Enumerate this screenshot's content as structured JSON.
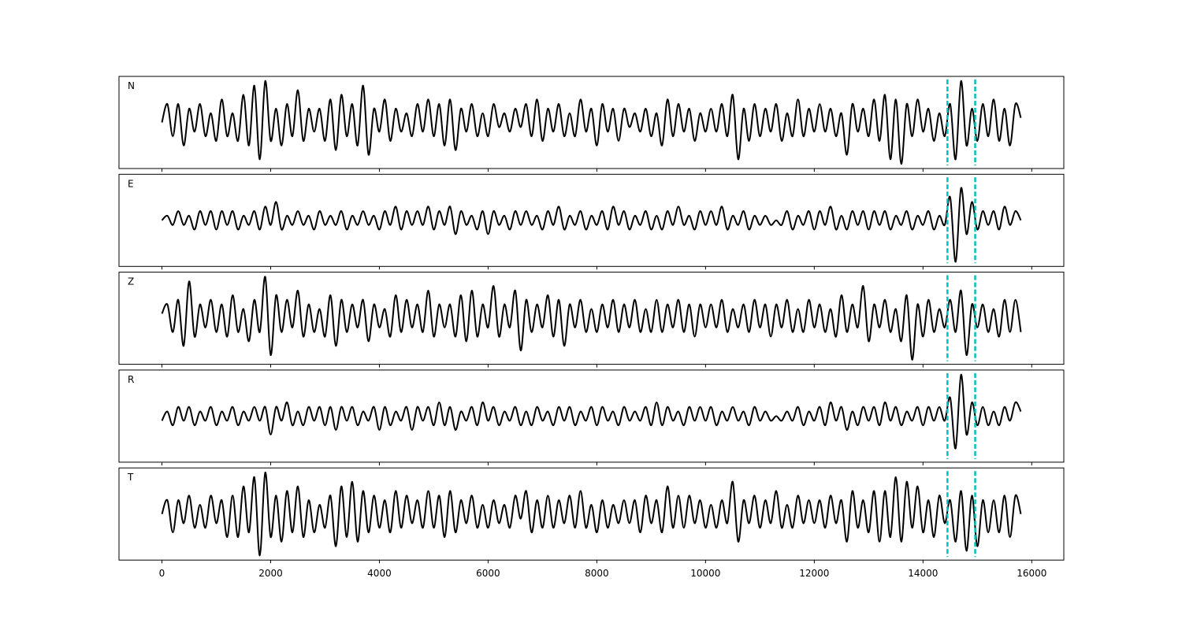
{
  "chart_data": {
    "type": "line",
    "color": "#000000",
    "x": [
      0,
      100,
      200,
      300,
      400,
      500,
      600,
      700,
      800,
      900,
      1000,
      1100,
      1200,
      1300,
      1400,
      1500,
      1600,
      1700,
      1800,
      1900,
      2000,
      2100,
      2200,
      2300,
      2400,
      2500,
      2600,
      2700,
      2800,
      2900,
      3000,
      3100,
      3200,
      3300,
      3400,
      3500,
      3600,
      3700,
      3800,
      3900,
      4000,
      4100,
      4200,
      4300,
      4400,
      4500,
      4600,
      4700,
      4800,
      4900,
      5000,
      5100,
      5200,
      5300,
      5400,
      5500,
      5600,
      5700,
      5800,
      5900,
      6000,
      6100,
      6200,
      6300,
      6400,
      6500,
      6600,
      6700,
      6800,
      6900,
      7000,
      7100,
      7200,
      7300,
      7400,
      7500,
      7600,
      7700,
      7800,
      7900,
      8000,
      8100,
      8200,
      8300,
      8400,
      8500,
      8600,
      8700,
      8800,
      8900,
      9000,
      9100,
      9200,
      9300,
      9400,
      9500,
      9600,
      9700,
      9800,
      9900,
      10000,
      10100,
      10200,
      10300,
      10400,
      10500,
      10600,
      10700,
      10800,
      10900,
      11000,
      11100,
      11200,
      11300,
      11400,
      11500,
      11600,
      11700,
      11800,
      11900,
      12000,
      12100,
      12200,
      12300,
      12400,
      12500,
      12600,
      12700,
      12800,
      12900,
      13000,
      13100,
      13200,
      13300,
      13400,
      13500,
      13600,
      13700,
      13800,
      13900,
      14000,
      14100,
      14200,
      14300,
      14400,
      14500,
      14600,
      14700,
      14800,
      14900,
      15000,
      15100,
      15200,
      15300,
      15400,
      15500,
      15600,
      15700,
      15800
    ],
    "series": [
      {
        "name": "N",
        "values": [
          0.0,
          0.4,
          -0.3,
          0.4,
          -0.5,
          0.3,
          -0.2,
          0.4,
          -0.3,
          0.2,
          -0.4,
          0.5,
          -0.3,
          0.2,
          -0.4,
          0.6,
          -0.5,
          0.8,
          -0.8,
          0.9,
          -0.4,
          0.3,
          -0.5,
          0.4,
          -0.3,
          0.7,
          -0.4,
          0.3,
          -0.2,
          0.3,
          -0.4,
          0.5,
          -0.6,
          0.6,
          -0.3,
          0.4,
          -0.5,
          0.8,
          -0.7,
          0.3,
          -0.2,
          0.5,
          -0.4,
          0.3,
          -0.2,
          0.2,
          -0.3,
          0.4,
          -0.2,
          0.5,
          -0.3,
          0.4,
          -0.5,
          0.5,
          -0.6,
          0.3,
          -0.2,
          0.4,
          -0.3,
          0.2,
          -0.3,
          0.4,
          -0.1,
          0.2,
          -0.2,
          0.3,
          -0.1,
          0.4,
          -0.3,
          0.5,
          -0.4,
          0.3,
          -0.2,
          0.4,
          -0.3,
          0.2,
          -0.3,
          0.5,
          -0.2,
          0.3,
          -0.5,
          0.4,
          -0.2,
          0.3,
          -0.4,
          0.3,
          -0.1,
          0.2,
          -0.2,
          0.3,
          -0.3,
          0.2,
          -0.5,
          0.5,
          -0.3,
          0.4,
          -0.2,
          0.3,
          -0.4,
          0.2,
          -0.2,
          0.3,
          -0.2,
          0.4,
          -0.3,
          0.6,
          -0.8,
          0.3,
          -0.4,
          0.4,
          -0.3,
          0.3,
          -0.2,
          0.4,
          -0.4,
          0.2,
          -0.3,
          0.5,
          -0.3,
          0.3,
          -0.2,
          0.4,
          -0.2,
          0.3,
          -0.3,
          0.2,
          -0.7,
          0.4,
          -0.2,
          0.3,
          -0.3,
          0.5,
          -0.4,
          0.6,
          -0.8,
          0.5,
          -0.9,
          0.4,
          -0.3,
          0.5,
          -0.2,
          0.3,
          -0.4,
          0.2,
          -0.3,
          0.4,
          -0.8,
          0.9,
          -0.5,
          0.3,
          -0.4,
          0.4,
          -0.3,
          0.5,
          -0.4,
          0.3,
          -0.5,
          0.4,
          0.1
        ]
      },
      {
        "name": "E",
        "values": [
          0.0,
          0.1,
          -0.1,
          0.2,
          -0.1,
          0.1,
          -0.2,
          0.2,
          -0.1,
          0.2,
          -0.2,
          0.2,
          -0.1,
          0.2,
          -0.2,
          0.1,
          -0.1,
          0.2,
          -0.2,
          0.3,
          -0.1,
          0.4,
          -0.2,
          0.1,
          -0.1,
          0.2,
          -0.1,
          0.1,
          -0.2,
          0.2,
          -0.1,
          0.1,
          -0.1,
          0.2,
          -0.2,
          0.1,
          -0.1,
          0.2,
          -0.1,
          0.1,
          -0.2,
          0.2,
          -0.1,
          0.3,
          -0.2,
          0.2,
          -0.1,
          0.2,
          -0.1,
          0.3,
          -0.2,
          0.2,
          -0.1,
          0.3,
          -0.3,
          0.2,
          -0.1,
          0.1,
          -0.2,
          0.2,
          -0.3,
          0.2,
          -0.1,
          0.1,
          -0.2,
          0.2,
          -0.1,
          0.2,
          -0.1,
          0.1,
          -0.2,
          0.2,
          -0.1,
          0.3,
          -0.2,
          0.1,
          -0.1,
          0.2,
          -0.2,
          0.1,
          -0.1,
          0.2,
          -0.2,
          0.3,
          -0.1,
          0.2,
          -0.2,
          0.1,
          -0.1,
          0.2,
          -0.2,
          0.1,
          -0.2,
          0.2,
          -0.1,
          0.3,
          -0.1,
          0.1,
          -0.2,
          0.2,
          -0.1,
          0.2,
          -0.1,
          0.3,
          -0.2,
          0.1,
          -0.1,
          0.2,
          -0.2,
          0.1,
          -0.1,
          0.1,
          -0.1,
          0.0,
          -0.1,
          0.2,
          -0.2,
          0.1,
          -0.1,
          0.2,
          -0.2,
          0.2,
          -0.1,
          0.3,
          -0.2,
          0.1,
          -0.2,
          0.2,
          -0.1,
          0.2,
          -0.2,
          0.2,
          -0.1,
          0.2,
          -0.2,
          0.1,
          -0.1,
          0.2,
          -0.2,
          0.1,
          -0.1,
          0.2,
          -0.2,
          0.1,
          -0.1,
          0.5,
          -0.9,
          0.7,
          -0.3,
          0.4,
          -0.2,
          0.2,
          -0.1,
          0.2,
          -0.2,
          0.3,
          -0.1,
          0.2,
          0.0
        ]
      },
      {
        "name": "Z",
        "values": [
          0.1,
          0.3,
          -0.3,
          0.4,
          -0.6,
          0.8,
          -0.4,
          0.3,
          -0.2,
          0.4,
          -0.3,
          0.3,
          -0.4,
          0.5,
          -0.3,
          0.2,
          -0.5,
          0.4,
          -0.3,
          0.9,
          -0.8,
          0.5,
          -0.3,
          0.4,
          -0.2,
          0.6,
          -0.4,
          0.3,
          -0.3,
          0.2,
          -0.4,
          0.5,
          -0.6,
          0.4,
          -0.3,
          0.3,
          -0.2,
          0.4,
          -0.5,
          0.3,
          -0.2,
          0.2,
          -0.4,
          0.5,
          -0.3,
          0.4,
          -0.2,
          0.3,
          -0.3,
          0.6,
          -0.4,
          0.3,
          -0.2,
          0.3,
          -0.4,
          0.5,
          -0.5,
          0.6,
          -0.4,
          0.3,
          -0.2,
          0.7,
          -0.4,
          0.3,
          -0.2,
          0.6,
          -0.7,
          0.4,
          -0.3,
          0.3,
          -0.2,
          0.5,
          -0.4,
          0.4,
          -0.6,
          0.3,
          -0.2,
          0.4,
          -0.3,
          0.2,
          -0.3,
          0.3,
          -0.2,
          0.4,
          -0.3,
          0.3,
          -0.2,
          0.4,
          -0.3,
          0.2,
          -0.3,
          0.4,
          -0.3,
          0.3,
          -0.2,
          0.4,
          -0.3,
          0.3,
          -0.4,
          0.3,
          -0.2,
          0.3,
          -0.2,
          0.4,
          -0.3,
          0.2,
          -0.2,
          0.3,
          -0.3,
          0.4,
          -0.2,
          0.3,
          -0.4,
          0.3,
          -0.2,
          0.4,
          -0.3,
          0.2,
          -0.3,
          0.4,
          -0.2,
          0.3,
          -0.3,
          0.2,
          -0.4,
          0.5,
          -0.3,
          0.3,
          -0.2,
          0.7,
          -0.5,
          0.3,
          -0.2,
          0.4,
          -0.3,
          0.2,
          -0.5,
          0.5,
          -0.9,
          0.3,
          -0.4,
          0.4,
          -0.3,
          0.2,
          -0.2,
          0.4,
          -0.3,
          0.6,
          -0.8,
          0.3,
          -0.2,
          0.3,
          -0.3,
          0.2,
          -0.4,
          0.4,
          -0.3,
          0.4,
          -0.3
        ]
      },
      {
        "name": "R",
        "values": [
          -0.1,
          0.1,
          -0.2,
          0.2,
          -0.1,
          0.2,
          -0.2,
          0.1,
          -0.1,
          0.2,
          -0.2,
          0.1,
          -0.1,
          0.2,
          -0.2,
          0.1,
          -0.1,
          0.2,
          -0.1,
          0.2,
          -0.4,
          0.2,
          -0.1,
          0.3,
          -0.2,
          0.1,
          -0.2,
          0.2,
          -0.1,
          0.2,
          -0.2,
          0.2,
          -0.3,
          0.2,
          -0.1,
          0.2,
          -0.2,
          0.1,
          -0.1,
          0.2,
          -0.3,
          0.2,
          -0.2,
          0.1,
          -0.1,
          0.2,
          -0.3,
          0.2,
          -0.1,
          0.2,
          -0.2,
          0.3,
          -0.2,
          0.2,
          -0.3,
          0.1,
          -0.1,
          0.2,
          -0.2,
          0.3,
          -0.1,
          0.2,
          -0.2,
          0.1,
          -0.1,
          0.2,
          -0.2,
          0.1,
          -0.2,
          0.2,
          -0.1,
          0.1,
          -0.2,
          0.2,
          -0.1,
          0.2,
          -0.2,
          0.1,
          -0.1,
          0.2,
          -0.2,
          0.2,
          -0.1,
          0.1,
          -0.2,
          0.2,
          -0.1,
          0.1,
          -0.1,
          0.2,
          -0.2,
          0.3,
          -0.2,
          0.2,
          -0.1,
          0.1,
          -0.2,
          0.2,
          -0.1,
          0.2,
          -0.1,
          0.2,
          -0.2,
          0.1,
          -0.1,
          0.2,
          -0.1,
          0.1,
          -0.2,
          0.2,
          -0.1,
          0.1,
          -0.1,
          0.0,
          -0.1,
          0.1,
          -0.1,
          0.2,
          -0.2,
          0.1,
          -0.1,
          0.2,
          -0.2,
          0.3,
          -0.1,
          0.2,
          -0.3,
          0.1,
          -0.2,
          0.2,
          -0.1,
          0.2,
          -0.2,
          0.3,
          -0.1,
          0.2,
          -0.2,
          0.1,
          -0.1,
          0.2,
          -0.2,
          0.2,
          -0.1,
          0.2,
          -0.1,
          0.4,
          -0.7,
          0.9,
          -0.4,
          0.3,
          -0.2,
          0.2,
          -0.2,
          0.1,
          -0.2,
          0.2,
          -0.1,
          0.3,
          0.1
        ]
      },
      {
        "name": "T",
        "values": [
          0.0,
          0.3,
          -0.4,
          0.3,
          -0.2,
          0.4,
          -0.3,
          0.2,
          -0.3,
          0.4,
          -0.2,
          0.3,
          -0.5,
          0.4,
          -0.5,
          0.6,
          -0.4,
          0.8,
          -0.9,
          0.9,
          -0.5,
          0.4,
          -0.6,
          0.5,
          -0.4,
          0.6,
          -0.5,
          0.3,
          -0.4,
          0.2,
          -0.3,
          0.4,
          -0.7,
          0.6,
          -0.5,
          0.7,
          -0.6,
          0.5,
          -0.4,
          0.4,
          -0.3,
          0.3,
          -0.4,
          0.5,
          -0.3,
          0.4,
          -0.2,
          0.3,
          -0.3,
          0.5,
          -0.3,
          0.4,
          -0.5,
          0.5,
          -0.4,
          0.3,
          -0.2,
          0.4,
          -0.3,
          0.2,
          -0.3,
          0.3,
          -0.2,
          0.2,
          -0.3,
          0.4,
          -0.1,
          0.5,
          -0.4,
          0.3,
          -0.3,
          0.4,
          -0.3,
          0.3,
          -0.2,
          0.4,
          -0.3,
          0.5,
          -0.3,
          0.2,
          -0.4,
          0.3,
          -0.3,
          0.2,
          -0.2,
          0.3,
          -0.2,
          0.3,
          -0.4,
          0.4,
          -0.2,
          0.3,
          -0.4,
          0.6,
          -0.3,
          0.4,
          -0.3,
          0.4,
          -0.2,
          0.3,
          -0.3,
          0.2,
          -0.3,
          0.3,
          -0.2,
          0.7,
          -0.6,
          0.3,
          -0.2,
          0.4,
          -0.3,
          0.3,
          -0.2,
          0.5,
          -0.3,
          0.2,
          -0.3,
          0.4,
          -0.2,
          0.3,
          -0.2,
          0.3,
          -0.3,
          0.4,
          -0.2,
          0.3,
          -0.6,
          0.5,
          -0.3,
          0.3,
          -0.4,
          0.5,
          -0.6,
          0.5,
          -0.5,
          0.8,
          -0.6,
          0.7,
          -0.3,
          0.6,
          -0.4,
          0.3,
          -0.5,
          0.4,
          -0.2,
          0.3,
          -0.6,
          0.5,
          -0.8,
          0.4,
          -0.7,
          0.3,
          -0.4,
          0.3,
          -0.4,
          0.4,
          -0.5,
          0.4,
          0.0
        ]
      }
    ],
    "xlim": [
      -790,
      16590
    ],
    "xticks": [
      0,
      2000,
      4000,
      6000,
      8000,
      10000,
      12000,
      14000,
      16000
    ],
    "ylim": [
      -1,
      1
    ],
    "vlines": [
      14450,
      14960
    ],
    "vline_color": "#00bfbf"
  }
}
